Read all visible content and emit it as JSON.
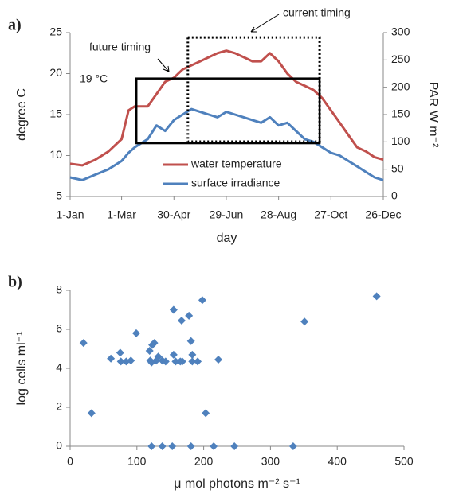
{
  "chart_data": [
    {
      "type": "line",
      "panel_label": "a)",
      "x_label": "day",
      "y_label": "degree C",
      "y2_label": "PAR  W m⁻²",
      "x": [
        1,
        15,
        30,
        45,
        60,
        68,
        75,
        90,
        100,
        110,
        120,
        130,
        140,
        150,
        160,
        170,
        180,
        190,
        200,
        210,
        220,
        230,
        240,
        250,
        260,
        270,
        280,
        290,
        300,
        310,
        320,
        330,
        340,
        350,
        360
      ],
      "series": [
        {
          "name": "water temperature",
          "color": "#c0504d",
          "axis": "y",
          "values": [
            9,
            8.8,
            9.5,
            10.5,
            12,
            15.5,
            16,
            16,
            17.5,
            19,
            19.5,
            20.5,
            21,
            21.5,
            22,
            22.5,
            22.8,
            22.5,
            22,
            21.5,
            21.5,
            22.5,
            21.5,
            20,
            19,
            18.5,
            18,
            17,
            15.5,
            14,
            12.5,
            11,
            10.5,
            9.8,
            9.5
          ]
        },
        {
          "name": "surface irradiance",
          "color": "#4f81bd",
          "axis": "y2",
          "values": [
            35,
            30,
            40,
            50,
            65,
            80,
            90,
            105,
            130,
            120,
            140,
            150,
            160,
            155,
            150,
            145,
            155,
            150,
            145,
            140,
            135,
            145,
            130,
            135,
            120,
            105,
            100,
            90,
            80,
            75,
            65,
            55,
            45,
            35,
            30
          ]
        }
      ],
      "xlim": [
        1,
        360
      ],
      "xticks": [
        {
          "value": 1,
          "label": "1-Jan"
        },
        {
          "value": 60,
          "label": "1-Mar"
        },
        {
          "value": 120,
          "label": "30-Apr"
        },
        {
          "value": 180,
          "label": "29-Jun"
        },
        {
          "value": 240,
          "label": "28-Aug"
        },
        {
          "value": 300,
          "label": "27-Oct"
        },
        {
          "value": 360,
          "label": "26-Dec"
        }
      ],
      "ylim": [
        5,
        25
      ],
      "yticks": [
        5,
        10,
        15,
        20,
        25
      ],
      "y2lim": [
        0,
        300
      ],
      "y2ticks": [
        0,
        50,
        100,
        150,
        200,
        250,
        300
      ],
      "boxes": [
        {
          "label": "future timing",
          "xlim": [
            77,
            287
          ],
          "ylim": [
            11.5,
            19.4
          ],
          "style": "solid"
        },
        {
          "label": "current timing",
          "xlim": [
            136,
            287
          ],
          "ylim": [
            11.7,
            24.4
          ],
          "style": "dotted"
        }
      ],
      "annotation": "19 °C",
      "legend": "lower center"
    },
    {
      "type": "scatter",
      "panel_label": "b)",
      "x_label": "μ mol photons m⁻² s⁻¹",
      "y_label": "log cells ml⁻¹",
      "color": "#4f81bd",
      "x": [
        20,
        32,
        61,
        75,
        76,
        84,
        91,
        99,
        119,
        123,
        126,
        120,
        122,
        132,
        129,
        138,
        143,
        155,
        155,
        158,
        165,
        168,
        167,
        178,
        181,
        183,
        183,
        191,
        198,
        222,
        203,
        351,
        459,
        122,
        138,
        153,
        181,
        215,
        246,
        334
      ],
      "values": [
        5.3,
        1.7,
        4.5,
        4.8,
        4.35,
        4.35,
        4.4,
        5.8,
        4.9,
        5.2,
        5.3,
        4.4,
        4.3,
        4.6,
        4.4,
        4.4,
        4.35,
        7.0,
        4.7,
        4.35,
        4.35,
        4.35,
        6.45,
        6.7,
        5.4,
        4.7,
        4.35,
        4.35,
        7.5,
        4.45,
        1.7,
        6.4,
        7.7,
        0,
        0,
        0,
        0,
        0,
        0,
        0
      ],
      "xlim": [
        0,
        500
      ],
      "xticks": [
        0,
        100,
        200,
        300,
        400,
        500
      ],
      "ylim": [
        0,
        8
      ],
      "yticks": [
        0,
        2,
        4,
        6,
        8
      ]
    }
  ]
}
